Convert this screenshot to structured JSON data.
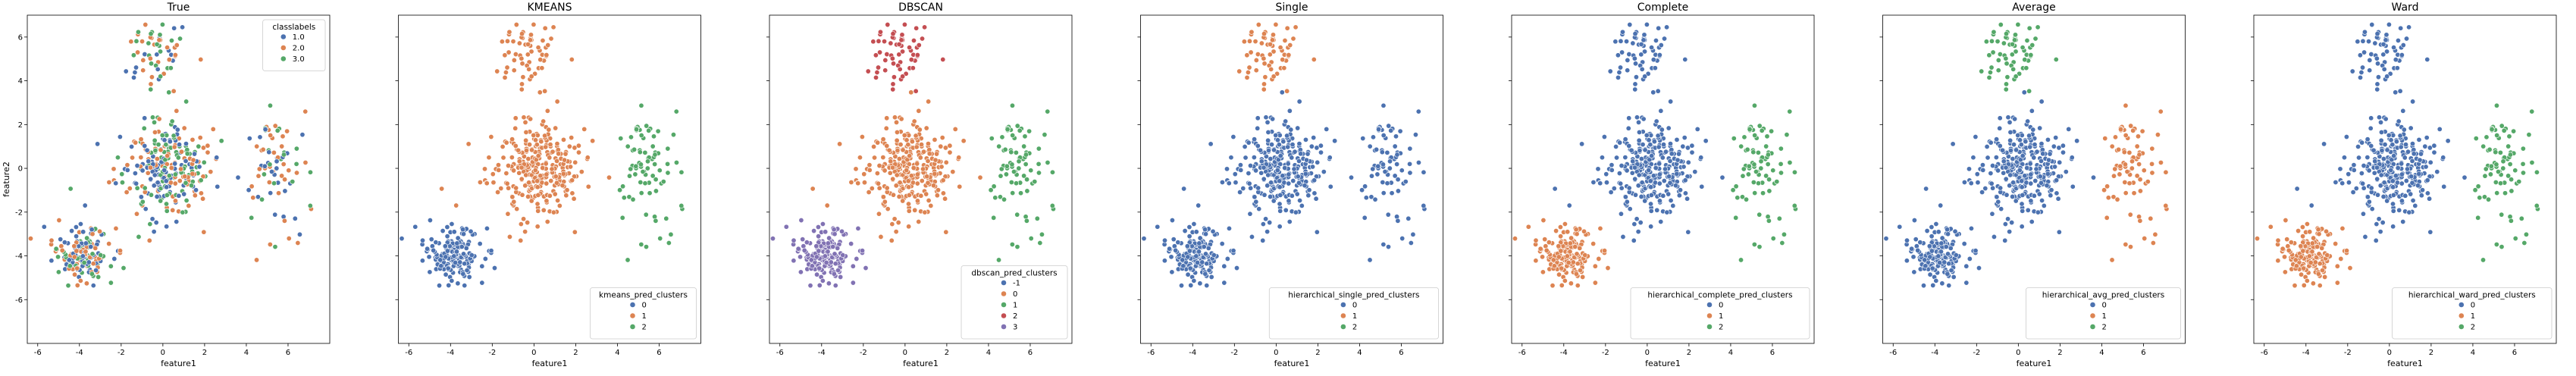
{
  "chart_data": {
    "type": "scatter",
    "xlabel": "feature1",
    "ylabel": "feature2",
    "xlim": [
      -6.5,
      8
    ],
    "ylim": [
      -8,
      7
    ],
    "xticks": [
      -6,
      -4,
      -2,
      0,
      2,
      4,
      6
    ],
    "yticks": [
      -6,
      -4,
      -2,
      0,
      2,
      4,
      6
    ],
    "clusters_xy": [
      {
        "cx": -3.9,
        "cy": -3.9,
        "sx": 0.7,
        "sy": 0.6,
        "n": 170
      },
      {
        "cx": 0.0,
        "cy": 0.0,
        "sx": 1.1,
        "sy": 1.1,
        "n": 300
      },
      {
        "cx": -0.4,
        "cy": 5.2,
        "sx": 0.8,
        "sy": 0.8,
        "n": 60
      },
      {
        "cx": 5.4,
        "cy": 0.2,
        "sx": 0.8,
        "sy": 1.3,
        "n": 80
      }
    ],
    "panels": [
      {
        "title": "True",
        "legend_title": "classlabels",
        "legend_position": "top-right",
        "legend_entries": [
          "1.0",
          "2.0",
          "3.0"
        ],
        "legend_colors": [
          "#4c72b0",
          "#dd8452",
          "#55a868"
        ],
        "mode": "true"
      },
      {
        "title": "KMEANS",
        "legend_title": "kmeans_pred_clusters",
        "legend_position": "bottom-right",
        "legend_entries": [
          "0",
          "1",
          "2"
        ],
        "legend_colors": [
          "#4c72b0",
          "#dd8452",
          "#55a868"
        ],
        "cluster_colors": [
          "#4c72b0",
          "#dd8452",
          "#dd8452",
          "#55a868"
        ]
      },
      {
        "title": "DBSCAN",
        "legend_title": "dbscan_pred_clusters",
        "legend_position": "bottom-right",
        "legend_entries": [
          "-1",
          "0",
          "1",
          "2",
          "3"
        ],
        "legend_colors": [
          "#4c72b0",
          "#dd8452",
          "#55a868",
          "#c44e52",
          "#8172b3"
        ],
        "cluster_colors": [
          "#8172b3",
          "#dd8452",
          "#c44e52",
          "#55a868"
        ]
      },
      {
        "title": "Single",
        "legend_title": "hierarchical_single_pred_clusters",
        "legend_position": "bottom-right",
        "legend_entries": [
          "0",
          "1",
          "2"
        ],
        "legend_colors": [
          "#4c72b0",
          "#dd8452",
          "#55a868"
        ],
        "cluster_colors": [
          "#4c72b0",
          "#4c72b0",
          "#dd8452",
          "#4c72b0"
        ]
      },
      {
        "title": "Complete",
        "legend_title": "hierarchical_complete_pred_clusters",
        "legend_position": "bottom-right",
        "legend_entries": [
          "0",
          "1",
          "2"
        ],
        "legend_colors": [
          "#4c72b0",
          "#dd8452",
          "#55a868"
        ],
        "cluster_colors": [
          "#dd8452",
          "#4c72b0",
          "#4c72b0",
          "#55a868"
        ]
      },
      {
        "title": "Average",
        "legend_title": "hierarchical_avg_pred_clusters",
        "legend_position": "bottom-right",
        "legend_entries": [
          "0",
          "1",
          "2"
        ],
        "legend_colors": [
          "#4c72b0",
          "#dd8452",
          "#55a868"
        ],
        "cluster_colors": [
          "#4c72b0",
          "#4c72b0",
          "#55a868",
          "#dd8452"
        ]
      },
      {
        "title": "Ward",
        "legend_title": "hierarchical_ward_pred_clusters",
        "legend_position": "bottom-right",
        "legend_entries": [
          "0",
          "1",
          "2"
        ],
        "legend_colors": [
          "#4c72b0",
          "#dd8452",
          "#55a868"
        ],
        "cluster_colors": [
          "#dd8452",
          "#4c72b0",
          "#4c72b0",
          "#55a868"
        ]
      }
    ]
  }
}
